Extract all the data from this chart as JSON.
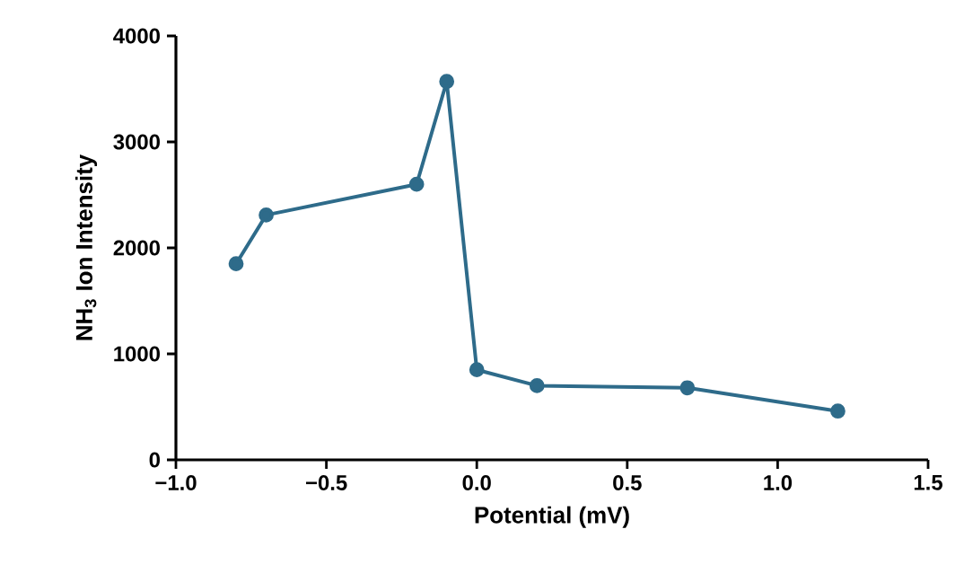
{
  "chart_data": {
    "type": "line",
    "xlabel": "Potential (mV)",
    "ylabel": "NH$_{3}$ Ion Intensity",
    "x": [
      -0.8,
      -0.7,
      -0.2,
      -0.1,
      0.0,
      0.2,
      0.7,
      1.2
    ],
    "series": [
      {
        "color": "#2e6b8a",
        "values": [
          1850,
          2310,
          2600,
          3570,
          850,
          700,
          680,
          460
        ]
      }
    ],
    "marker": "circle",
    "line_style": "solid",
    "grid": false,
    "xlim": [
      -1.0,
      1.5
    ],
    "xticks": [
      {
        "value": -1.0,
        "label": "−1.0"
      },
      {
        "value": -0.5,
        "label": "−0.5"
      },
      {
        "value": 0.0,
        "label": "0.0"
      },
      {
        "value": 0.5,
        "label": "0.5"
      },
      {
        "value": 1.0,
        "label": "1.0"
      },
      {
        "value": 1.5,
        "label": "1.5"
      }
    ],
    "ylim": [
      0,
      4000
    ],
    "yticks": [
      0,
      1000,
      2000,
      3000,
      4000
    ]
  }
}
